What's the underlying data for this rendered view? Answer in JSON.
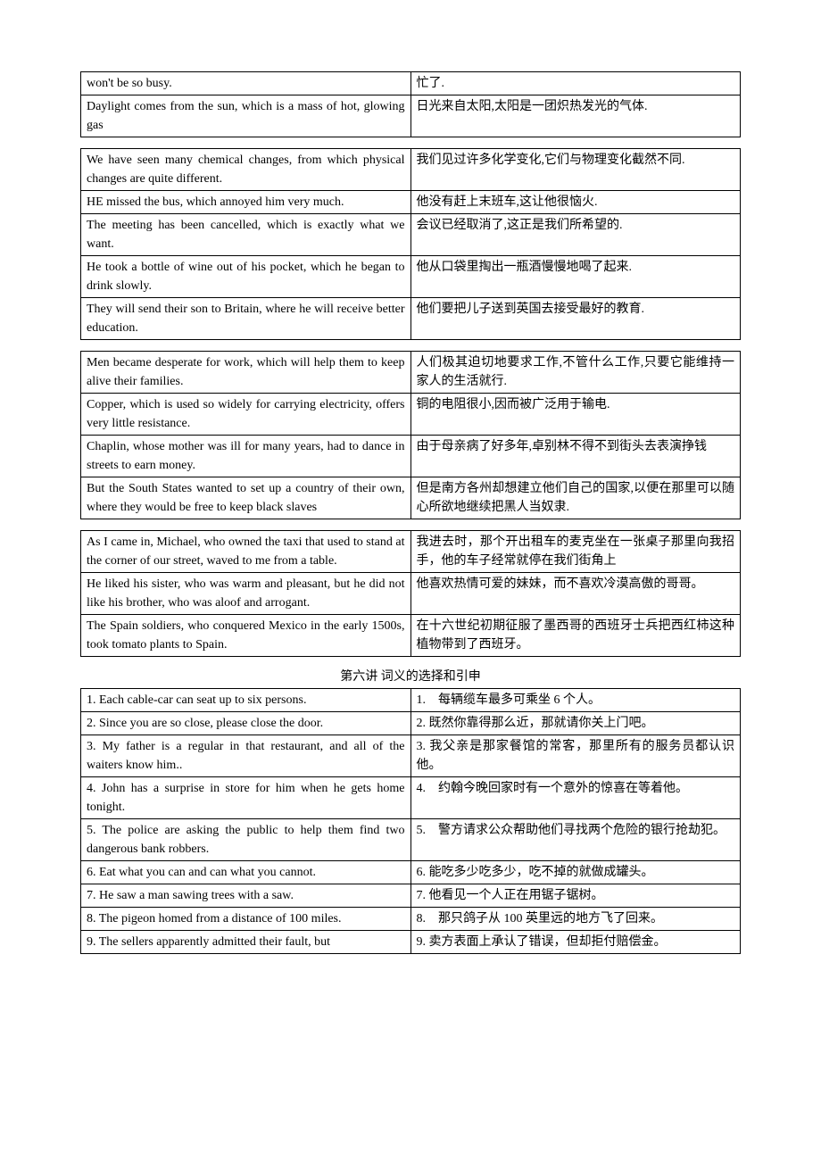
{
  "heading": "第六讲 词义的选择和引申",
  "tables": [
    {
      "rows": [
        {
          "en": "won't be so busy.",
          "zh": "忙了."
        },
        {
          "en": "Daylight comes from the sun, which is a mass of hot, glowing gas",
          "zh": "日光来自太阳,太阳是一团炽热发光的气体."
        }
      ]
    },
    {
      "rows": [
        {
          "en": "We have seen many chemical changes, from which physical changes are quite different.",
          "zh": "我们见过许多化学变化,它们与物理变化截然不同."
        },
        {
          "en": "HE missed the bus, which annoyed him very much.",
          "zh": "他没有赶上末班车,这让他很恼火."
        },
        {
          "en": "The meeting has been cancelled, which is exactly what we want.",
          "zh": "会议已经取消了,这正是我们所希望的."
        },
        {
          "en": "He took a bottle of wine out of his pocket, which he began to drink slowly.",
          "zh": "他从口袋里掏出一瓶酒慢慢地喝了起来."
        },
        {
          "en": "They will send their son to Britain, where he will receive better education.",
          "zh": "他们要把儿子送到英国去接受最好的教育."
        }
      ]
    },
    {
      "rows": [
        {
          "en": "Men became desperate for work, which will help them to keep alive their families.",
          "zh": "人们极其迫切地要求工作,不管什么工作,只要它能维持一家人的生活就行."
        },
        {
          "en": "Copper, which is used so widely for carrying electricity, offers very little resistance.",
          "zh": "铜的电阻很小,因而被广泛用于输电."
        },
        {
          "en": "Chaplin, whose mother was ill for many years, had to dance in streets to earn money.",
          "zh": "由于母亲病了好多年,卓别林不得不到街头去表演挣钱"
        },
        {
          "en": "But the South States wanted to set up a country of their own, where they would be free to keep black slaves",
          "zh": "但是南方各州却想建立他们自己的国家,以便在那里可以随心所欲地继续把黑人当奴隶."
        }
      ]
    },
    {
      "rows": [
        {
          "en": "As I came in, Michael, who owned the taxi that used to stand at the corner of our street, waved to me from a table.",
          "zh": "我进去时，那个开出租车的麦克坐在一张桌子那里向我招手，他的车子经常就停在我们街角上"
        },
        {
          "en": "He liked his sister, who was warm and pleasant, but he did not like his brother, who was aloof and arrogant.",
          "zh": "他喜欢热情可爱的妹妹，而不喜欢冷漠高傲的哥哥。"
        },
        {
          "en": "The Spain soldiers, who conquered Mexico in the early 1500s, took tomato plants to Spain.",
          "zh": "在十六世纪初期征服了墨西哥的西班牙士兵把西红柿这种植物带到了西班牙。"
        }
      ]
    },
    {
      "rows": [
        {
          "en": "1. Each cable-car can seat up to six persons.",
          "zh": "1.　每辆缆车最多可乘坐 6 个人。"
        },
        {
          "en": "2. Since you are so close, please close the door.",
          "zh": "2. 既然你靠得那么近，那就请你关上门吧。"
        },
        {
          "en": "3. My father is a regular in that restaurant, and all of the waiters know him..",
          "zh": "3. 我父亲是那家餐馆的常客，那里所有的服务员都认识他。"
        },
        {
          "en": "4. John has a surprise in store for him when he gets home tonight.",
          "zh": "4.　约翰今晚回家时有一个意外的惊喜在等着他。"
        },
        {
          "en": "5. The police are asking the public to help them find two dangerous bank robbers.",
          "zh": "5.　警方请求公众帮助他们寻找两个危险的银行抢劫犯。"
        },
        {
          "en": "6. Eat what you can and can what you cannot.",
          "zh": "6. 能吃多少吃多少，吃不掉的就做成罐头。"
        },
        {
          "en": "7. He saw a man sawing trees with a saw.",
          "zh": "7. 他看见一个人正在用锯子锯树。"
        },
        {
          "en": "8. The pigeon homed from a distance of 100 miles.",
          "zh": "8.　那只鸽子从 100 英里远的地方飞了回来。"
        },
        {
          "en": "9. The sellers apparently admitted their fault, but",
          "zh": "9. 卖方表面上承认了错误，但却拒付赔偿金。"
        }
      ]
    }
  ]
}
